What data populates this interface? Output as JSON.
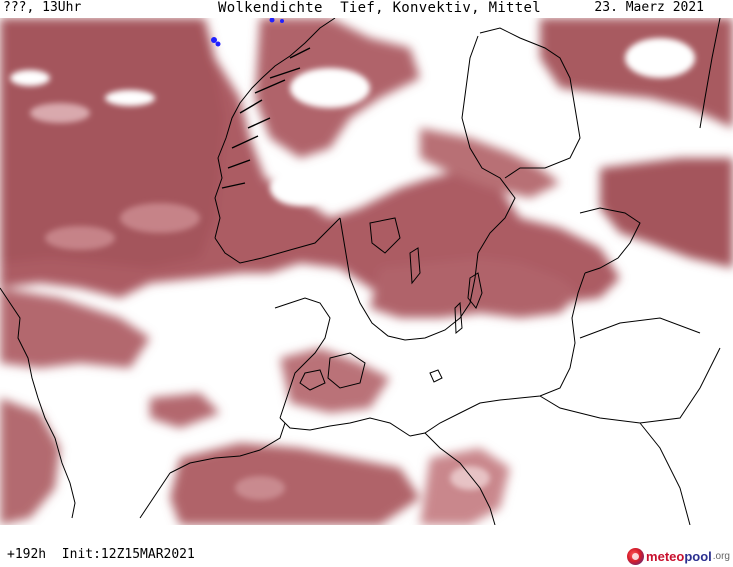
{
  "header": {
    "left": "???, 13Uhr",
    "center": "Wolkendichte  Tief, Konvektiv, Mittel",
    "right": "23. Maerz 2021"
  },
  "footer": {
    "run": "+192h  Init:12Z15MAR2021"
  },
  "logo": {
    "part1": "meteo",
    "part2": "pool",
    "part3": ".org"
  },
  "colors": {
    "cloud_dense": "#a4545c",
    "cloud_mid": "#b56a70",
    "cloud_light": "#c9878c",
    "cloud_faint": "#dcaeb0",
    "background": "#ffffff",
    "coast": "#000000"
  }
}
